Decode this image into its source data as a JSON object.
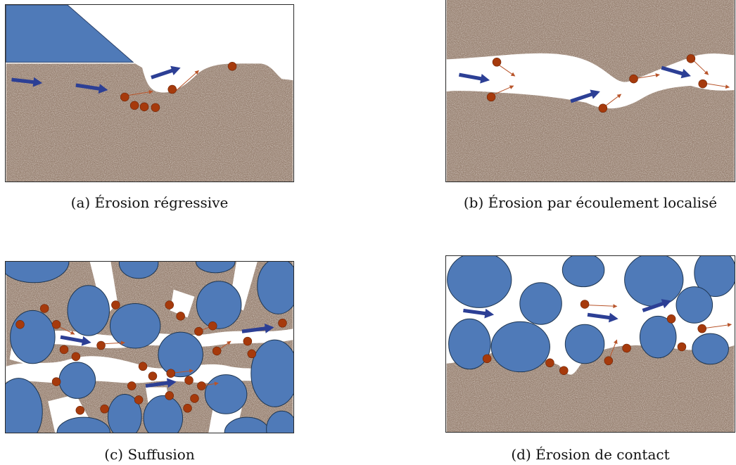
{
  "figure": {
    "panels": [
      {
        "id": "a",
        "caption": "(a) Érosion régressive"
      },
      {
        "id": "b",
        "caption": "(b) Érosion par écoulement localisé"
      },
      {
        "id": "c",
        "caption": "(c) Suffusion"
      },
      {
        "id": "d",
        "caption": "(d) Érosion de contact"
      }
    ]
  },
  "colors": {
    "soil": "#9a8474",
    "water_reservoir": "#4f7ab8",
    "grain": "#4f7ab8",
    "grain_outline": "#1e3550",
    "fine_particle": "#a63a0c",
    "flow_arrow": "#2c3f95",
    "particle_trajectory": "#b8542a",
    "void": "#ffffff"
  },
  "icons": [
    "flow-arrow-icon",
    "fine-particle-icon"
  ]
}
